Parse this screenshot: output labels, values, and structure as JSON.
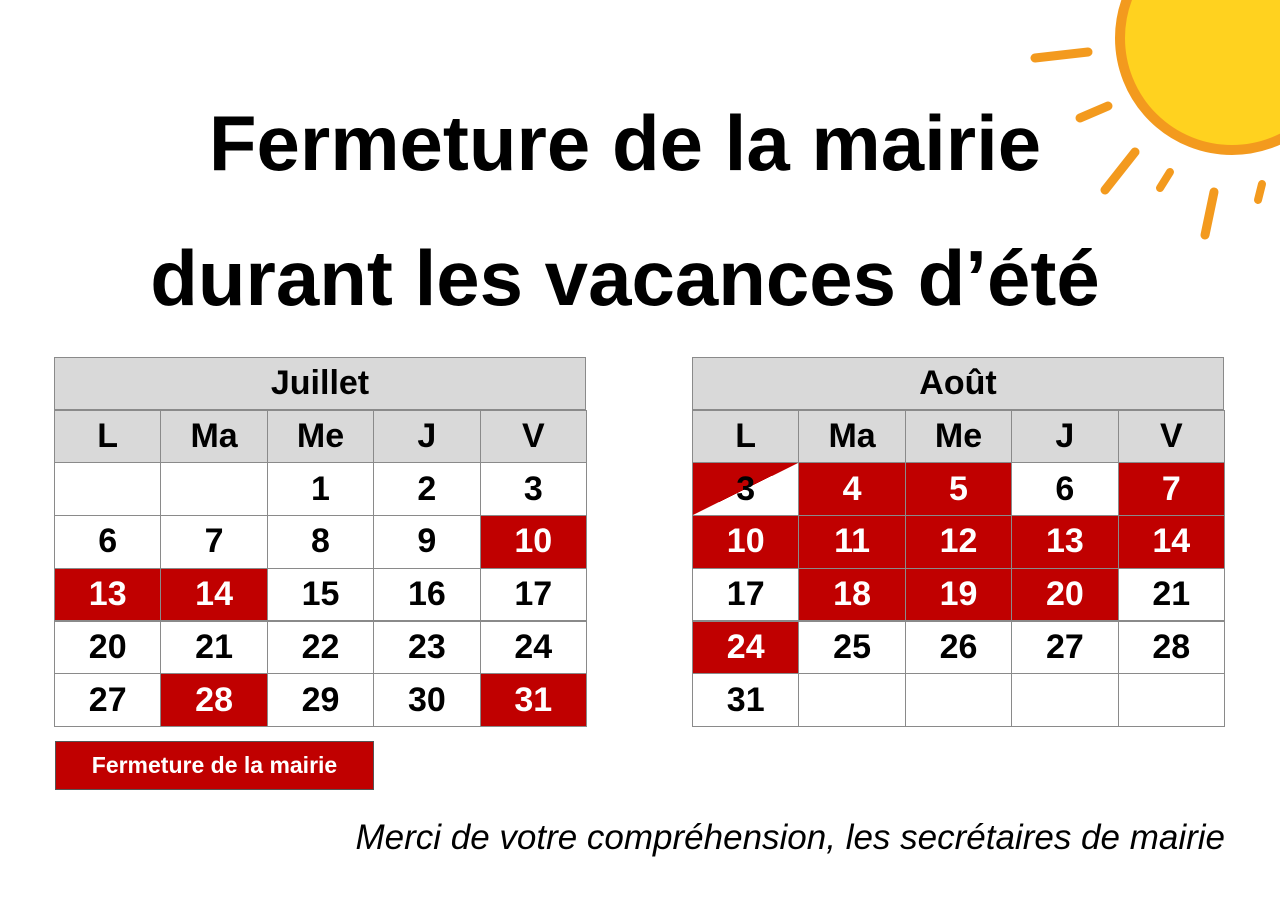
{
  "title": {
    "line1": "Fermeture de la mairie",
    "line2": "durant les vacances d’été"
  },
  "calendars": [
    {
      "month": "Juillet",
      "days": [
        "L",
        "Ma",
        "Me",
        "J",
        "V"
      ],
      "rows": [
        [
          null,
          null,
          {
            "day": 1,
            "closed": false
          },
          {
            "day": 2,
            "closed": false
          },
          {
            "day": 3,
            "closed": false
          }
        ],
        [
          {
            "day": 6,
            "closed": false
          },
          {
            "day": 7,
            "closed": false
          },
          {
            "day": 8,
            "closed": false
          },
          {
            "day": 9,
            "closed": false
          },
          {
            "day": 10,
            "closed": true
          }
        ],
        [
          {
            "day": 13,
            "closed": true
          },
          {
            "day": 14,
            "closed": true
          },
          {
            "day": 15,
            "closed": false
          },
          {
            "day": 16,
            "closed": false
          },
          {
            "day": 17,
            "closed": false
          }
        ],
        [
          {
            "day": 20,
            "closed": false
          },
          {
            "day": 21,
            "closed": false
          },
          {
            "day": 22,
            "closed": false
          },
          {
            "day": 23,
            "closed": false
          },
          {
            "day": 24,
            "closed": false
          }
        ],
        [
          {
            "day": 27,
            "closed": false
          },
          {
            "day": 28,
            "closed": true
          },
          {
            "day": 29,
            "closed": false
          },
          {
            "day": 30,
            "closed": false
          },
          {
            "day": 31,
            "closed": true
          }
        ]
      ]
    },
    {
      "month": "Août",
      "days": [
        "L",
        "Ma",
        "Me",
        "J",
        "V"
      ],
      "rows": [
        [
          {
            "day": 3,
            "closed": "partial"
          },
          {
            "day": 4,
            "closed": true
          },
          {
            "day": 5,
            "closed": true
          },
          {
            "day": 6,
            "closed": false
          },
          {
            "day": 7,
            "closed": true
          }
        ],
        [
          {
            "day": 10,
            "closed": true
          },
          {
            "day": 11,
            "closed": true
          },
          {
            "day": 12,
            "closed": true
          },
          {
            "day": 13,
            "closed": true
          },
          {
            "day": 14,
            "closed": true
          }
        ],
        [
          {
            "day": 17,
            "closed": false
          },
          {
            "day": 18,
            "closed": true
          },
          {
            "day": 19,
            "closed": true
          },
          {
            "day": 20,
            "closed": true
          },
          {
            "day": 21,
            "closed": false
          }
        ],
        [
          {
            "day": 24,
            "closed": true
          },
          {
            "day": 25,
            "closed": false
          },
          {
            "day": 26,
            "closed": false
          },
          {
            "day": 27,
            "closed": false
          },
          {
            "day": 28,
            "closed": false
          }
        ],
        [
          {
            "day": 31,
            "closed": false
          },
          null,
          null,
          null,
          null
        ]
      ]
    }
  ],
  "legend": {
    "label": "Fermeture de la mairie",
    "color": "#c00000"
  },
  "footer": "Merci de votre compréhension, les secrétaires de mairie"
}
